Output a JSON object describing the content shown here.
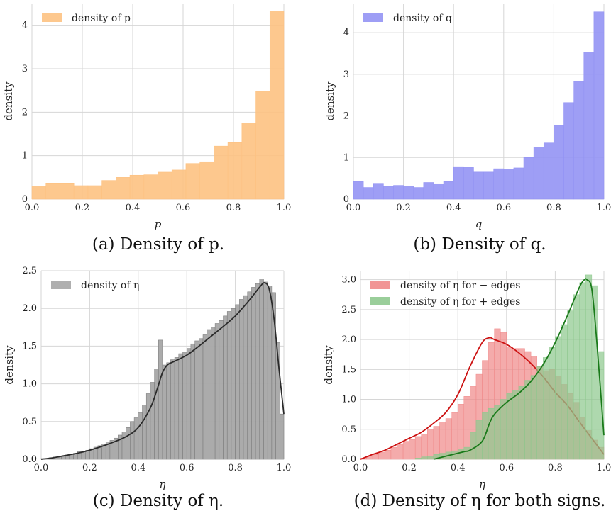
{
  "captions": [
    "(a) Density of p.",
    "(b) Density of q.",
    "(c) Density of η.",
    "(d) Density of η for both signs."
  ],
  "chart_data": [
    {
      "id": "a",
      "type": "histogram",
      "xlabel": "p",
      "ylabel": "density",
      "xlim": [
        0,
        1
      ],
      "ylim": [
        0,
        4.5
      ],
      "xticks": [
        0.0,
        0.2,
        0.4,
        0.6,
        0.8,
        1.0
      ],
      "xtick_labels": [
        "0.0",
        "0.2",
        "0.4",
        "0.6",
        "0.8",
        "1.0"
      ],
      "yticks": [
        0,
        1,
        2,
        3,
        4
      ],
      "ytick_labels": [
        "0",
        "1",
        "2",
        "3",
        "4"
      ],
      "grid": true,
      "legend_position": "top-left",
      "series": [
        {
          "name": "density of p",
          "color": "#fdc282",
          "bins": 18,
          "values": [
            0.3,
            0.37,
            0.37,
            0.31,
            0.31,
            0.43,
            0.5,
            0.55,
            0.56,
            0.62,
            0.67,
            0.82,
            0.86,
            1.22,
            1.3,
            1.75,
            2.48,
            4.33
          ]
        }
      ]
    },
    {
      "id": "b",
      "type": "histogram",
      "xlabel": "q",
      "ylabel": "density",
      "xlim": [
        0,
        1
      ],
      "ylim": [
        0,
        4.7
      ],
      "xticks": [
        0.0,
        0.2,
        0.4,
        0.6,
        0.8,
        1.0
      ],
      "xtick_labels": [
        "0.0",
        "0.2",
        "0.4",
        "0.6",
        "0.8",
        "1.0"
      ],
      "yticks": [
        0,
        1,
        2,
        3,
        4
      ],
      "ytick_labels": [
        "0",
        "1",
        "2",
        "3",
        "4"
      ],
      "grid": true,
      "legend_position": "top-left",
      "series": [
        {
          "name": "density of q",
          "color": "#9494f4",
          "bins": 25,
          "values": [
            0.42,
            0.28,
            0.38,
            0.31,
            0.33,
            0.3,
            0.28,
            0.4,
            0.37,
            0.42,
            0.78,
            0.76,
            0.65,
            0.65,
            0.73,
            0.72,
            0.75,
            1.0,
            1.25,
            1.35,
            1.77,
            2.32,
            2.83,
            3.53,
            4.5
          ]
        }
      ]
    },
    {
      "id": "c",
      "type": "histogram",
      "xlabel": "η",
      "ylabel": "density",
      "xlim": [
        0,
        1
      ],
      "ylim": [
        0,
        2.5
      ],
      "xticks": [
        0.0,
        0.2,
        0.4,
        0.6,
        0.8,
        1.0
      ],
      "xtick_labels": [
        "0.0",
        "0.2",
        "0.4",
        "0.6",
        "0.8",
        "1.0"
      ],
      "yticks": [
        0.0,
        0.5,
        1.0,
        1.5,
        2.0,
        2.5
      ],
      "ytick_labels": [
        "0.0",
        "0.5",
        "1.0",
        "1.5",
        "2.0",
        "2.5"
      ],
      "grid": true,
      "legend_position": "top-left",
      "series": [
        {
          "name": "density of η",
          "color": "#a6a6a6",
          "edge_color": "#777777",
          "line_color": "#2a2a2a",
          "kde_x": [
            0.0,
            0.05,
            0.1,
            0.15,
            0.2,
            0.25,
            0.3,
            0.35,
            0.4,
            0.45,
            0.48,
            0.5,
            0.52,
            0.55,
            0.6,
            0.65,
            0.7,
            0.75,
            0.8,
            0.85,
            0.88,
            0.9,
            0.92,
            0.94,
            0.96,
            0.98,
            1.0
          ],
          "kde_y": [
            0.0,
            0.02,
            0.05,
            0.08,
            0.12,
            0.17,
            0.23,
            0.3,
            0.42,
            0.68,
            0.95,
            1.15,
            1.25,
            1.3,
            1.38,
            1.5,
            1.63,
            1.76,
            1.9,
            2.08,
            2.2,
            2.28,
            2.34,
            2.25,
            1.85,
            1.2,
            0.6
          ],
          "bin_count": 60,
          "bin_heights": [
            0.01,
            0.01,
            0.02,
            0.03,
            0.03,
            0.04,
            0.05,
            0.07,
            0.08,
            0.1,
            0.11,
            0.12,
            0.14,
            0.16,
            0.18,
            0.2,
            0.22,
            0.25,
            0.28,
            0.32,
            0.36,
            0.42,
            0.5,
            0.55,
            0.62,
            0.72,
            0.87,
            1.02,
            1.2,
            1.58,
            1.25,
            1.28,
            1.32,
            1.35,
            1.4,
            1.42,
            1.47,
            1.53,
            1.57,
            1.6,
            1.65,
            1.72,
            1.75,
            1.8,
            1.84,
            1.9,
            1.96,
            2.0,
            2.05,
            2.12,
            2.17,
            2.22,
            2.28,
            2.33,
            2.39,
            2.35,
            2.3,
            2.21,
            1.55,
            0.6
          ]
        }
      ]
    },
    {
      "id": "d",
      "type": "histogram",
      "xlabel": "η",
      "ylabel": "density",
      "xlim": [
        0,
        1
      ],
      "ylim": [
        0,
        3.15
      ],
      "xticks": [
        0.0,
        0.2,
        0.4,
        0.6,
        0.8,
        1.0
      ],
      "xtick_labels": [
        "0.0",
        "0.2",
        "0.4",
        "0.6",
        "0.8",
        "1.0"
      ],
      "yticks": [
        0.0,
        0.5,
        1.0,
        1.5,
        2.0,
        2.5,
        3.0
      ],
      "ytick_labels": [
        "0.0",
        "0.5",
        "1.0",
        "1.5",
        "2.0",
        "2.5",
        "3.0"
      ],
      "grid": true,
      "legend_position": "top-left",
      "series": [
        {
          "name": "density of η for − edges",
          "color": "#f08a8a",
          "line_color": "#cc1111",
          "kde_x": [
            0.0,
            0.05,
            0.1,
            0.15,
            0.2,
            0.25,
            0.3,
            0.35,
            0.4,
            0.45,
            0.5,
            0.53,
            0.55,
            0.6,
            0.65,
            0.7,
            0.75,
            0.8,
            0.85,
            0.9,
            0.95,
            1.0
          ],
          "kde_y": [
            0.0,
            0.08,
            0.15,
            0.25,
            0.35,
            0.45,
            0.6,
            0.78,
            1.08,
            1.55,
            1.95,
            2.03,
            2.0,
            1.92,
            1.78,
            1.6,
            1.38,
            1.12,
            0.9,
            0.62,
            0.35,
            0.08
          ],
          "bin_count": 40,
          "bin_heights": [
            0.02,
            0.05,
            0.08,
            0.12,
            0.15,
            0.2,
            0.25,
            0.3,
            0.33,
            0.38,
            0.42,
            0.5,
            0.55,
            0.62,
            0.68,
            0.78,
            0.92,
            1.05,
            1.22,
            1.42,
            1.65,
            1.95,
            2.18,
            2.12,
            1.88,
            1.85,
            1.85,
            1.8,
            1.72,
            1.55,
            1.48,
            1.5,
            1.38,
            1.25,
            1.1,
            0.95,
            0.7,
            0.48,
            0.32,
            0.2
          ]
        },
        {
          "name": "density of η for + edges",
          "color": "#8fc98f",
          "line_color": "#1a7a1a",
          "kde_x": [
            0.3,
            0.35,
            0.4,
            0.43,
            0.45,
            0.5,
            0.53,
            0.55,
            0.6,
            0.65,
            0.7,
            0.75,
            0.8,
            0.85,
            0.9,
            0.92,
            0.93,
            0.95,
            0.97,
            1.0
          ],
          "kde_y": [
            0.0,
            0.05,
            0.1,
            0.13,
            0.15,
            0.3,
            0.6,
            0.75,
            0.95,
            1.1,
            1.3,
            1.58,
            1.95,
            2.4,
            2.88,
            3.0,
            3.0,
            2.85,
            2.0,
            0.4
          ],
          "bin_count": 32,
          "start": 0.2,
          "bin_heights": [
            0.0,
            0.02,
            0.04,
            0.05,
            0.08,
            0.1,
            0.12,
            0.14,
            0.16,
            0.2,
            0.45,
            0.65,
            0.78,
            0.85,
            0.9,
            1.0,
            1.1,
            1.15,
            1.22,
            1.32,
            1.4,
            1.55,
            1.7,
            1.88,
            2.05,
            2.25,
            2.48,
            2.75,
            2.95,
            3.08,
            2.9,
            1.8
          ]
        }
      ]
    }
  ]
}
